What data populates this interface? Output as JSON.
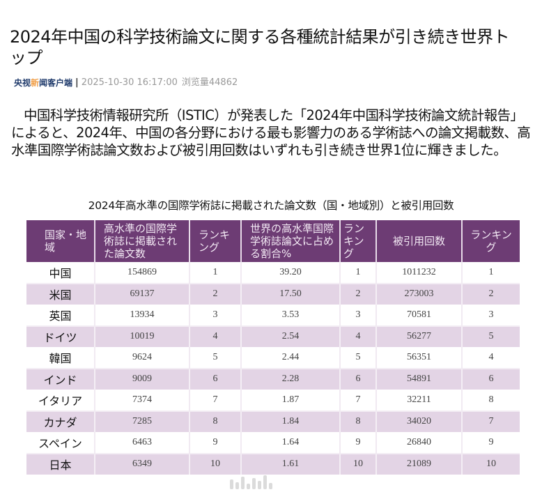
{
  "article": {
    "title": "2024年中国の科学技術論文に関する各種統計結果が引き続き世界トップ",
    "meta": {
      "source_pre": "央视",
      "source_highlight": "新",
      "source_post": "闻客户端",
      "separator": "|",
      "datetime": "2025-10-30 16:17:00",
      "views_label": "浏览量",
      "views": "44862"
    },
    "lead": "中国科学技術情報研究所（ISTIC）が発表した「2024年中国科学技術論文統計報告」によると、2024年、中国の各分野における最も影響力のある学術誌への論文掲載数、高水準国際学術誌論文数および被引用回数はいずれも引き続き世界1位に輝きました。"
  },
  "table": {
    "title": "2024年高水準の国際学術誌に掲載された論文数（国・地域別）と被引用回数",
    "colors": {
      "header_bg": "#6d3c74",
      "header_text": "#f3e9f4",
      "stripe": "#e3d4e5"
    },
    "headers": [
      "国家・地域",
      "高水準の国際学術誌に掲載された論文数",
      "ランキング",
      "世界の高水準国際学術誌論文に占める割合%",
      "ランキング",
      "被引用回数",
      "ランキング"
    ],
    "rows": [
      [
        "中国",
        "154869",
        "1",
        "39.20",
        "1",
        "1011232",
        "1"
      ],
      [
        "米国",
        "69137",
        "2",
        "17.50",
        "2",
        "273003",
        "2"
      ],
      [
        "英国",
        "13934",
        "3",
        "3.53",
        "3",
        "70581",
        "3"
      ],
      [
        "ドイツ",
        "10019",
        "4",
        "2.54",
        "4",
        "56277",
        "5"
      ],
      [
        "韓国",
        "9624",
        "5",
        "2.44",
        "5",
        "56351",
        "4"
      ],
      [
        "インド",
        "9009",
        "6",
        "2.28",
        "6",
        "54891",
        "6"
      ],
      [
        "イタリア",
        "7374",
        "7",
        "1.87",
        "7",
        "32211",
        "8"
      ],
      [
        "カナダ",
        "7285",
        "8",
        "1.84",
        "8",
        "34020",
        "7"
      ],
      [
        "スペイン",
        "6463",
        "9",
        "1.64",
        "9",
        "26840",
        "9"
      ],
      [
        "日本",
        "6349",
        "10",
        "1.61",
        "10",
        "21089",
        "10"
      ]
    ]
  }
}
